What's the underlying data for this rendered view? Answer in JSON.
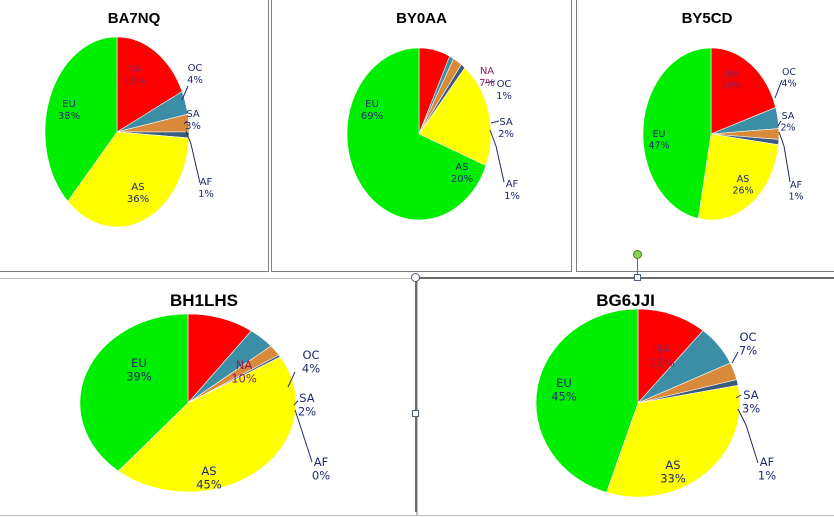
{
  "colors": {
    "EU": "#00ee00",
    "NA": "#ff0000",
    "OC": "#3b8ea5",
    "SA": "#d9893a",
    "AF": "#3c5a7c",
    "AS": "#ffff00",
    "label": "#1f2a6e"
  },
  "chart_data": [
    {
      "type": "pie",
      "title": "BA7NQ",
      "slices": [
        {
          "name": "NA",
          "value": 18
        },
        {
          "name": "OC",
          "value": 4
        },
        {
          "name": "SA",
          "value": 3
        },
        {
          "name": "AF",
          "value": 1
        },
        {
          "name": "AS",
          "value": 36
        },
        {
          "name": "EU",
          "value": 38
        }
      ],
      "labels": [
        {
          "name": "NA",
          "text": "18%"
        },
        {
          "name": "OC",
          "text": "4%"
        },
        {
          "name": "SA",
          "text": "3%"
        },
        {
          "name": "AF",
          "text": "1%"
        },
        {
          "name": "AS",
          "text": "36%"
        },
        {
          "name": "EU",
          "text": "38%"
        }
      ]
    },
    {
      "type": "pie",
      "title": "BY0AA",
      "slices": [
        {
          "name": "NA",
          "value": 7
        },
        {
          "name": "OC",
          "value": 1
        },
        {
          "name": "SA",
          "value": 2
        },
        {
          "name": "AF",
          "value": 1
        },
        {
          "name": "AS",
          "value": 20
        },
        {
          "name": "EU",
          "value": 69
        }
      ],
      "labels": [
        {
          "name": "NA",
          "text": "7%"
        },
        {
          "name": "OC",
          "text": "1%"
        },
        {
          "name": "SA",
          "text": "2%"
        },
        {
          "name": "AF",
          "text": "1%"
        },
        {
          "name": "AS",
          "text": "20%"
        },
        {
          "name": "EU",
          "text": "69%"
        }
      ]
    },
    {
      "type": "pie",
      "title": "BY5CD",
      "slices": [
        {
          "name": "NA",
          "value": 20
        },
        {
          "name": "OC",
          "value": 4
        },
        {
          "name": "SA",
          "value": 2
        },
        {
          "name": "AF",
          "value": 1
        },
        {
          "name": "AS",
          "value": 26
        },
        {
          "name": "EU",
          "value": 47
        }
      ],
      "labels": [
        {
          "name": "NA",
          "text": "20%"
        },
        {
          "name": "OC",
          "text": "4%"
        },
        {
          "name": "SA",
          "text": "2%"
        },
        {
          "name": "AF",
          "text": "1%"
        },
        {
          "name": "AS",
          "text": "26%"
        },
        {
          "name": "EU",
          "text": "47%"
        }
      ]
    },
    {
      "type": "pie",
      "title": "BH1LHS",
      "slices": [
        {
          "name": "NA",
          "value": 10
        },
        {
          "name": "OC",
          "value": 4
        },
        {
          "name": "SA",
          "value": 2
        },
        {
          "name": "AF",
          "value": 0.4
        },
        {
          "name": "AS",
          "value": 45
        },
        {
          "name": "EU",
          "value": 39
        }
      ],
      "labels": [
        {
          "name": "NA",
          "text": "10%"
        },
        {
          "name": "OC",
          "text": "4%"
        },
        {
          "name": "SA",
          "text": "2%"
        },
        {
          "name": "AF",
          "text": "0%"
        },
        {
          "name": "AS",
          "text": "45%"
        },
        {
          "name": "EU",
          "text": "39%"
        }
      ]
    },
    {
      "type": "pie",
      "title": "BG6JJI",
      "slices": [
        {
          "name": "NA",
          "value": 11
        },
        {
          "name": "OC",
          "value": 7
        },
        {
          "name": "SA",
          "value": 3
        },
        {
          "name": "AF",
          "value": 1
        },
        {
          "name": "AS",
          "value": 33
        },
        {
          "name": "EU",
          "value": 45
        }
      ],
      "labels": [
        {
          "name": "NA",
          "text": "11%"
        },
        {
          "name": "OC",
          "text": "7%"
        },
        {
          "name": "SA",
          "text": "3%"
        },
        {
          "name": "AF",
          "text": "1%"
        },
        {
          "name": "AS",
          "text": "33%"
        },
        {
          "name": "EU",
          "text": "45%"
        }
      ]
    }
  ]
}
